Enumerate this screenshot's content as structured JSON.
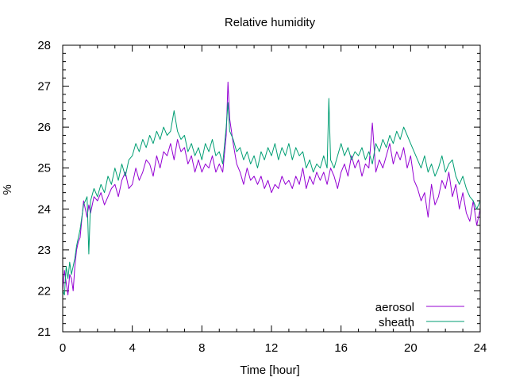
{
  "chart_data": {
    "type": "line",
    "title": "Relative humidity",
    "xlabel": "Time [hour]",
    "ylabel": "%",
    "xlim": [
      0,
      24
    ],
    "ylim": [
      21,
      28
    ],
    "x_ticks": [
      0,
      4,
      8,
      12,
      16,
      20,
      24
    ],
    "y_ticks": [
      21,
      22,
      23,
      24,
      25,
      26,
      27,
      28
    ],
    "x_minor_step": 1,
    "y_minor_step": 0.2,
    "grid": false,
    "legend_position": "bottom-right",
    "series": [
      {
        "name": "aerosol",
        "color": "#9400d3",
        "x": [
          0,
          0.1,
          0.2,
          0.3,
          0.4,
          0.5,
          0.6,
          0.7,
          0.8,
          0.9,
          1.0,
          1.2,
          1.4,
          1.5,
          1.6,
          1.8,
          2.0,
          2.2,
          2.4,
          2.6,
          2.8,
          3.0,
          3.2,
          3.4,
          3.6,
          3.8,
          4.0,
          4.2,
          4.4,
          4.6,
          4.8,
          5.0,
          5.2,
          5.4,
          5.6,
          5.8,
          6.0,
          6.2,
          6.4,
          6.6,
          6.8,
          7.0,
          7.2,
          7.4,
          7.6,
          7.8,
          8.0,
          8.2,
          8.4,
          8.6,
          8.8,
          9.0,
          9.2,
          9.4,
          9.5,
          9.6,
          9.8,
          10.0,
          10.2,
          10.4,
          10.6,
          10.8,
          11.0,
          11.2,
          11.4,
          11.6,
          11.8,
          12.0,
          12.2,
          12.4,
          12.6,
          12.8,
          13.0,
          13.2,
          13.4,
          13.6,
          13.8,
          14.0,
          14.2,
          14.4,
          14.6,
          14.8,
          15.0,
          15.2,
          15.4,
          15.6,
          15.8,
          16.0,
          16.2,
          16.4,
          16.6,
          16.8,
          17.0,
          17.2,
          17.4,
          17.6,
          17.8,
          18.0,
          18.2,
          18.4,
          18.6,
          18.8,
          19.0,
          19.2,
          19.4,
          19.6,
          19.8,
          20.0,
          20.2,
          20.4,
          20.6,
          20.8,
          21.0,
          21.2,
          21.4,
          21.6,
          21.8,
          22.0,
          22.2,
          22.4,
          22.6,
          22.8,
          23.0,
          23.2,
          23.4,
          23.6,
          23.8,
          24.0
        ],
        "values": [
          22.0,
          22.5,
          22.2,
          21.9,
          22.4,
          22.3,
          22.0,
          22.6,
          23.0,
          23.2,
          23.3,
          24.2,
          23.8,
          24.1,
          23.9,
          24.3,
          24.2,
          24.4,
          24.1,
          24.3,
          24.5,
          24.6,
          24.3,
          24.7,
          24.9,
          24.5,
          24.6,
          25.0,
          24.7,
          24.9,
          25.2,
          25.1,
          24.8,
          25.3,
          25.0,
          25.4,
          25.3,
          25.6,
          25.2,
          25.7,
          25.4,
          25.5,
          25.1,
          25.3,
          24.9,
          25.2,
          24.9,
          25.1,
          25.0,
          25.3,
          24.9,
          25.1,
          24.9,
          25.8,
          27.1,
          26.2,
          25.6,
          25.1,
          24.9,
          24.6,
          25.0,
          24.7,
          24.8,
          24.6,
          24.8,
          24.5,
          24.7,
          24.4,
          24.6,
          24.5,
          24.8,
          24.6,
          24.7,
          24.5,
          24.8,
          24.6,
          25.0,
          24.5,
          24.8,
          24.6,
          24.9,
          24.7,
          24.9,
          24.6,
          25.0,
          24.8,
          24.5,
          24.9,
          25.1,
          24.8,
          25.3,
          25.0,
          25.2,
          24.8,
          25.1,
          25.0,
          26.1,
          24.9,
          25.2,
          25.0,
          25.3,
          25.6,
          25.1,
          25.4,
          25.2,
          25.5,
          25.0,
          25.3,
          24.7,
          24.5,
          24.2,
          24.4,
          23.8,
          24.6,
          24.1,
          24.3,
          24.7,
          24.5,
          24.9,
          24.3,
          24.6,
          24.0,
          24.4,
          23.9,
          23.7,
          24.2,
          23.6,
          24.0
        ],
        "label_style": "line"
      },
      {
        "name": "sheath",
        "color": "#009e73",
        "x": [
          0,
          0.1,
          0.2,
          0.3,
          0.4,
          0.5,
          0.6,
          0.7,
          0.8,
          0.9,
          1.0,
          1.2,
          1.4,
          1.5,
          1.6,
          1.8,
          2.0,
          2.2,
          2.4,
          2.6,
          2.8,
          3.0,
          3.2,
          3.4,
          3.6,
          3.8,
          4.0,
          4.2,
          4.4,
          4.6,
          4.8,
          5.0,
          5.2,
          5.4,
          5.6,
          5.8,
          6.0,
          6.2,
          6.4,
          6.6,
          6.8,
          7.0,
          7.2,
          7.4,
          7.6,
          7.8,
          8.0,
          8.2,
          8.4,
          8.6,
          8.8,
          9.0,
          9.2,
          9.4,
          9.5,
          9.6,
          9.8,
          10.0,
          10.2,
          10.4,
          10.6,
          10.8,
          11.0,
          11.2,
          11.4,
          11.6,
          11.8,
          12.0,
          12.2,
          12.4,
          12.6,
          12.8,
          13.0,
          13.2,
          13.4,
          13.6,
          13.8,
          14.0,
          14.2,
          14.4,
          14.6,
          14.8,
          15.0,
          15.2,
          15.3,
          15.4,
          15.6,
          15.8,
          16.0,
          16.2,
          16.4,
          16.6,
          16.8,
          17.0,
          17.2,
          17.4,
          17.6,
          17.8,
          18.0,
          18.2,
          18.4,
          18.6,
          18.8,
          19.0,
          19.2,
          19.4,
          19.6,
          19.8,
          20.0,
          20.2,
          20.4,
          20.6,
          20.8,
          21.0,
          21.2,
          21.4,
          21.6,
          21.8,
          22.0,
          22.2,
          22.4,
          22.6,
          22.8,
          23.0,
          23.2,
          23.4,
          23.6,
          23.8,
          24.0
        ],
        "values": [
          22.0,
          21.9,
          22.6,
          22.3,
          22.7,
          22.4,
          22.6,
          22.8,
          23.1,
          23.3,
          23.5,
          24.1,
          24.3,
          22.9,
          24.2,
          24.5,
          24.3,
          24.6,
          24.4,
          24.8,
          24.6,
          25.0,
          24.7,
          25.1,
          24.8,
          25.2,
          25.3,
          25.6,
          25.4,
          25.7,
          25.5,
          25.8,
          25.6,
          25.9,
          25.7,
          26.0,
          25.8,
          25.9,
          26.4,
          25.9,
          25.7,
          25.8,
          25.4,
          25.6,
          25.3,
          25.5,
          25.2,
          25.6,
          25.4,
          25.7,
          25.3,
          25.4,
          25.1,
          26.0,
          26.6,
          25.9,
          25.7,
          25.4,
          25.5,
          25.2,
          25.4,
          25.1,
          25.3,
          25.0,
          25.4,
          25.2,
          25.5,
          25.3,
          25.6,
          25.2,
          25.5,
          25.3,
          25.6,
          25.2,
          25.5,
          25.3,
          25.4,
          25.0,
          25.2,
          24.9,
          25.1,
          25.0,
          25.3,
          25.0,
          26.7,
          25.2,
          25.0,
          25.3,
          25.6,
          25.3,
          25.5,
          25.2,
          25.4,
          25.3,
          25.5,
          25.2,
          25.4,
          25.1,
          25.6,
          25.4,
          25.7,
          25.5,
          25.8,
          25.6,
          25.9,
          25.7,
          26.0,
          25.8,
          25.6,
          25.4,
          25.2,
          25.0,
          25.3,
          24.9,
          25.1,
          24.8,
          25.0,
          25.3,
          24.9,
          25.1,
          25.2,
          24.8,
          24.6,
          24.8,
          24.5,
          24.3,
          24.2,
          24.0,
          24.2
        ],
        "label_style": "line"
      }
    ]
  }
}
